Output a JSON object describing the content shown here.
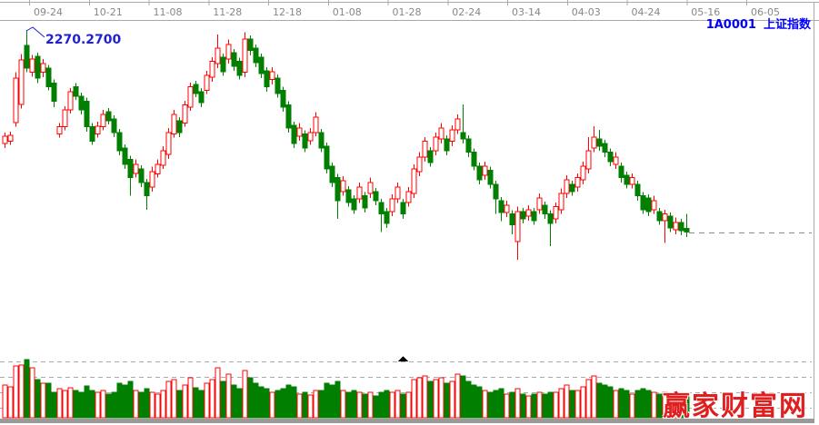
{
  "header": {
    "symbol_code": "1A0001",
    "symbol_name": "上证指数"
  },
  "annotation": {
    "price_label": "2270.2700",
    "color": "#2222cc"
  },
  "watermark": {
    "text": "赢家财富网",
    "color": "#e02020"
  },
  "colors": {
    "up": "#ff0000",
    "down": "#007f00",
    "axis_line": "#a9a9a9",
    "tick_label": "#878787",
    "volume_grid": "#ababab",
    "last_price_dash": "#8c8c8c",
    "bottom_strip": "#9a9a9a",
    "position_marker": "#000000"
  },
  "chart_data": {
    "type": "candlestick",
    "title": "1A0001 上证指数",
    "x_tick_labels": [
      "09-24",
      "10-21",
      "11-08",
      "11-28",
      "12-18",
      "01-08",
      "01-28",
      "02-24",
      "03-14",
      "04-03",
      "04-24",
      "05-16",
      "06-05"
    ],
    "ylim": [
      1945,
      2282
    ],
    "y_axis_labels_shown": false,
    "annotated_high": 2270.27,
    "last_close": 1992,
    "volume_unit": "relative",
    "series_format": [
      "open",
      "high",
      "low",
      "close",
      "volume"
    ],
    "candles": [
      [
        2114,
        2129,
        2108,
        2124,
        36
      ],
      [
        2117,
        2130,
        2112,
        2125,
        34
      ],
      [
        2143,
        2212,
        2137,
        2204,
        57
      ],
      [
        2168,
        2237,
        2162,
        2229,
        58
      ],
      [
        2249,
        2270.27,
        2212,
        2218,
        64
      ],
      [
        2212,
        2236,
        2206,
        2230,
        55
      ],
      [
        2234,
        2239,
        2197,
        2204,
        42
      ],
      [
        2212,
        2230,
        2205,
        2224,
        38
      ],
      [
        2218,
        2222,
        2187,
        2192,
        38
      ],
      [
        2197,
        2202,
        2164,
        2172,
        28
      ],
      [
        2127,
        2142,
        2122,
        2137,
        32
      ],
      [
        2137,
        2165,
        2132,
        2160,
        30
      ],
      [
        2160,
        2190,
        2155,
        2185,
        33
      ],
      [
        2192,
        2197,
        2174,
        2179,
        30
      ],
      [
        2179,
        2184,
        2154,
        2160,
        28
      ],
      [
        2172,
        2177,
        2130,
        2137,
        35
      ],
      [
        2137,
        2142,
        2112,
        2117,
        30
      ],
      [
        2127,
        2144,
        2122,
        2138,
        28
      ],
      [
        2137,
        2160,
        2132,
        2154,
        30
      ],
      [
        2158,
        2163,
        2140,
        2145,
        26
      ],
      [
        2148,
        2153,
        2123,
        2129,
        28
      ],
      [
        2129,
        2134,
        2098,
        2104,
        38
      ],
      [
        2108,
        2113,
        2079,
        2085,
        36
      ],
      [
        2092,
        2097,
        2042,
        2067,
        40
      ],
      [
        2073,
        2092,
        2067,
        2085,
        30
      ],
      [
        2079,
        2084,
        2054,
        2060,
        28
      ],
      [
        2060,
        2065,
        2023,
        2042,
        32
      ],
      [
        2054,
        2082,
        2048,
        2075,
        28
      ],
      [
        2072,
        2092,
        2067,
        2085,
        26
      ],
      [
        2084,
        2110,
        2079,
        2104,
        30
      ],
      [
        2099,
        2135,
        2093,
        2129,
        40
      ],
      [
        2127,
        2160,
        2122,
        2154,
        42
      ],
      [
        2145,
        2150,
        2123,
        2129,
        30
      ],
      [
        2142,
        2173,
        2137,
        2167,
        36
      ],
      [
        2164,
        2198,
        2159,
        2192,
        44
      ],
      [
        2195,
        2200,
        2178,
        2183,
        33
      ],
      [
        2185,
        2190,
        2164,
        2170,
        30
      ],
      [
        2187,
        2214,
        2182,
        2208,
        38
      ],
      [
        2205,
        2233,
        2199,
        2227,
        42
      ],
      [
        2224,
        2264,
        2218,
        2245,
        55
      ],
      [
        2233,
        2238,
        2207,
        2213,
        40
      ],
      [
        2230,
        2257,
        2224,
        2250,
        48
      ],
      [
        2239,
        2244,
        2214,
        2220,
        36
      ],
      [
        2227,
        2232,
        2202,
        2208,
        32
      ],
      [
        2212,
        2267,
        2205,
        2258,
        52
      ],
      [
        2258,
        2263,
        2235,
        2242,
        44
      ],
      [
        2245,
        2250,
        2219,
        2225,
        38
      ],
      [
        2233,
        2238,
        2204,
        2210,
        34
      ],
      [
        2214,
        2219,
        2185,
        2192,
        32
      ],
      [
        2202,
        2219,
        2195,
        2213,
        28
      ],
      [
        2204,
        2209,
        2177,
        2183,
        30
      ],
      [
        2187,
        2192,
        2158,
        2164,
        32
      ],
      [
        2167,
        2172,
        2129,
        2135,
        36
      ],
      [
        2139,
        2144,
        2108,
        2114,
        34
      ],
      [
        2124,
        2142,
        2118,
        2135,
        26
      ],
      [
        2127,
        2132,
        2102,
        2108,
        28
      ],
      [
        2118,
        2135,
        2112,
        2129,
        25
      ],
      [
        2129,
        2157,
        2124,
        2150,
        30
      ],
      [
        2129,
        2134,
        2102,
        2108,
        30
      ],
      [
        2110,
        2115,
        2073,
        2079,
        38
      ],
      [
        2083,
        2088,
        2054,
        2060,
        36
      ],
      [
        2067,
        2072,
        2010,
        2035,
        40
      ],
      [
        2048,
        2069,
        2042,
        2063,
        30
      ],
      [
        2050,
        2055,
        2027,
        2033,
        28
      ],
      [
        2038,
        2043,
        2017,
        2023,
        30
      ],
      [
        2038,
        2060,
        2032,
        2054,
        28
      ],
      [
        2042,
        2047,
        2019,
        2025,
        26
      ],
      [
        2045,
        2067,
        2039,
        2060,
        28
      ],
      [
        2048,
        2053,
        2029,
        2035,
        24
      ],
      [
        2033,
        2038,
        1992,
        2017,
        28
      ],
      [
        2020,
        2025,
        1998,
        2004,
        30
      ],
      [
        2020,
        2044,
        2014,
        2038,
        28
      ],
      [
        2038,
        2060,
        2032,
        2054,
        30
      ],
      [
        2033,
        2038,
        2010,
        2017,
        26
      ],
      [
        2033,
        2054,
        2027,
        2048,
        28
      ],
      [
        2045,
        2085,
        2039,
        2079,
        42
      ],
      [
        2075,
        2102,
        2069,
        2095,
        44
      ],
      [
        2095,
        2123,
        2089,
        2117,
        46
      ],
      [
        2104,
        2109,
        2082,
        2088,
        40
      ],
      [
        2104,
        2129,
        2098,
        2123,
        42
      ],
      [
        2120,
        2142,
        2114,
        2135,
        44
      ],
      [
        2120,
        2125,
        2098,
        2104,
        38
      ],
      [
        2117,
        2139,
        2110,
        2133,
        40
      ],
      [
        2133,
        2154,
        2127,
        2148,
        48
      ],
      [
        2129,
        2168,
        2114,
        2120,
        46
      ],
      [
        2120,
        2125,
        2095,
        2102,
        40
      ],
      [
        2102,
        2107,
        2077,
        2083,
        36
      ],
      [
        2083,
        2088,
        2058,
        2064,
        34
      ],
      [
        2070,
        2089,
        2064,
        2083,
        30
      ],
      [
        2077,
        2082,
        2052,
        2058,
        28
      ],
      [
        2058,
        2063,
        2017,
        2038,
        30
      ],
      [
        2035,
        2040,
        2007,
        2019,
        32
      ],
      [
        2019,
        2035,
        2013,
        2029,
        26
      ],
      [
        2017,
        2022,
        1989,
        2002,
        28
      ],
      [
        1979,
        2027,
        1954,
        2020,
        32
      ],
      [
        2020,
        2025,
        2004,
        2010,
        26
      ],
      [
        2014,
        2029,
        2008,
        2023,
        24
      ],
      [
        2020,
        2025,
        2002,
        2008,
        26
      ],
      [
        2023,
        2045,
        2017,
        2039,
        28
      ],
      [
        2029,
        2034,
        2010,
        2017,
        26
      ],
      [
        2017,
        2022,
        1973,
        2004,
        28
      ],
      [
        2010,
        2033,
        2004,
        2027,
        28
      ],
      [
        2023,
        2052,
        2017,
        2045,
        32
      ],
      [
        2045,
        2070,
        2039,
        2064,
        36
      ],
      [
        2058,
        2063,
        2042,
        2048,
        30
      ],
      [
        2054,
        2073,
        2048,
        2067,
        30
      ],
      [
        2064,
        2089,
        2058,
        2083,
        34
      ],
      [
        2079,
        2123,
        2073,
        2104,
        42
      ],
      [
        2108,
        2138,
        2102,
        2123,
        46
      ],
      [
        2120,
        2133,
        2104,
        2110,
        38
      ],
      [
        2114,
        2119,
        2095,
        2102,
        36
      ],
      [
        2102,
        2107,
        2083,
        2089,
        34
      ],
      [
        2085,
        2102,
        2079,
        2095,
        30
      ],
      [
        2083,
        2088,
        2060,
        2067,
        32
      ],
      [
        2070,
        2075,
        2052,
        2058,
        30
      ],
      [
        2058,
        2073,
        2052,
        2067,
        26
      ],
      [
        2058,
        2063,
        2035,
        2042,
        30
      ],
      [
        2042,
        2047,
        2017,
        2023,
        32
      ],
      [
        2039,
        2044,
        2014,
        2020,
        30
      ],
      [
        2023,
        2042,
        2017,
        2035,
        28
      ],
      [
        2020,
        2025,
        2002,
        2008,
        26
      ],
      [
        2008,
        2023,
        1977,
        2017,
        28
      ],
      [
        2014,
        2019,
        1992,
        1998,
        26
      ],
      [
        1995,
        2012,
        1989,
        2005,
        24
      ],
      [
        2005,
        2010,
        1988,
        1994,
        22
      ],
      [
        1997,
        2017,
        1985,
        1992,
        24
      ]
    ]
  }
}
